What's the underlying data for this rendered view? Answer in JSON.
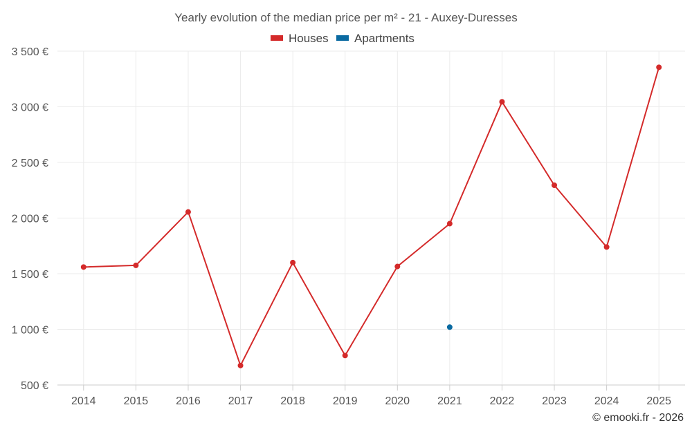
{
  "chart_data": {
    "type": "line",
    "title": "Yearly evolution of the median price per m² - 21 - Auxey-Duresses",
    "categories": [
      "2014",
      "2015",
      "2016",
      "2017",
      "2018",
      "2019",
      "2020",
      "2021",
      "2022",
      "2023",
      "2024",
      "2025"
    ],
    "series": [
      {
        "name": "Houses",
        "color": "#d42a2a",
        "values": [
          1560,
          1575,
          2055,
          675,
          1600,
          765,
          1565,
          1950,
          3045,
          2295,
          1740,
          3355
        ]
      },
      {
        "name": "Apartments",
        "color": "#0a6aa1",
        "values": [
          null,
          null,
          null,
          null,
          null,
          null,
          null,
          1020,
          null,
          null,
          null,
          null
        ]
      }
    ],
    "ylim": [
      500,
      3500
    ],
    "yticks": [
      500,
      1000,
      1500,
      2000,
      2500,
      3000,
      3500
    ],
    "ytick_labels": [
      "500 €",
      "1 000 €",
      "1 500 €",
      "2 000 €",
      "2 500 €",
      "3 000 €",
      "3 500 €"
    ],
    "xlabel": "",
    "ylabel": "",
    "grid": true,
    "legend_position": "top-center"
  },
  "credit": "© emooki.fr - 2026"
}
